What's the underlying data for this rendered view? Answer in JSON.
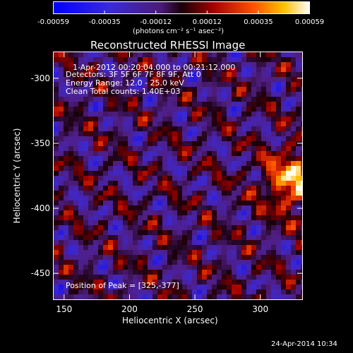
{
  "chart_data": {
    "type": "heatmap",
    "title": "Reconstructed RHESSI Image",
    "xlabel": "Heliocentric X (arcsec)",
    "ylabel": "Heliocentric Y (arcsec)",
    "xlim": [
      142,
      332
    ],
    "ylim": [
      -470,
      -280
    ],
    "x_ticks": [
      150,
      200,
      250,
      300
    ],
    "y_ticks": [
      -300,
      -350,
      -400,
      -450
    ],
    "colorbar": {
      "ticks": [
        "-0.00059",
        "-0.00035",
        "-0.00012",
        "0.00012",
        "0.00035",
        "0.00059"
      ],
      "unit_label": "(photons cm⁻² s⁻¹ asec⁻²)",
      "range": [
        -0.00059,
        0.00059
      ]
    },
    "annotations": {
      "time_range": "1-Apr-2012 00:20:04.000 to 00:21:12.000",
      "detectors": "Detectors: 3F 5F 6F 7F 8F 9F, Att 0",
      "energy": "Energy Range: 12.0 - 25.0 keV",
      "clean": "Clean     Total counts: 1.40E+03",
      "peak": "Position of Peak = [325,-377]"
    },
    "peak": {
      "x": 325,
      "y": -377
    },
    "timestamp": "24-Apr-2014 10:34"
  }
}
